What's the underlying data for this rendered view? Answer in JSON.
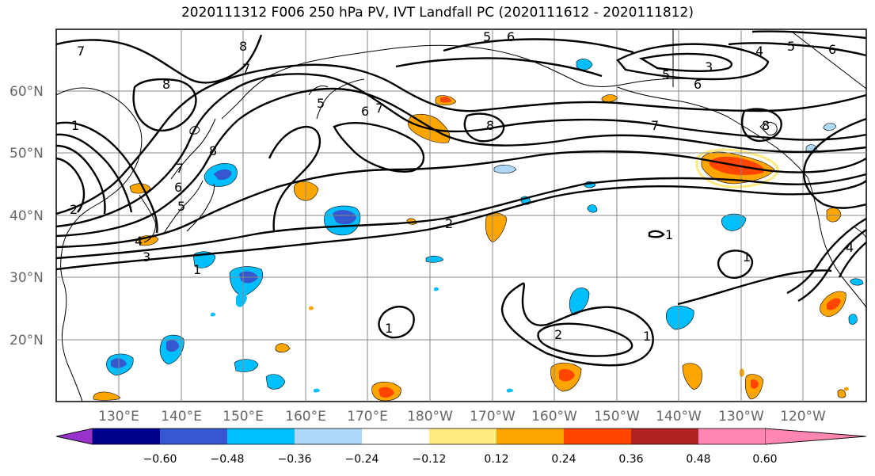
{
  "title": "2020111312 F006 250 hPa PV, IVT Landfall PC (2020111612 - 2020111812)",
  "map": {
    "lat_labels": [
      "60°N",
      "50°N",
      "40°N",
      "30°N",
      "20°N"
    ],
    "lon_labels": [
      "130°E",
      "140°E",
      "150°E",
      "160°E",
      "170°E",
      "180°W",
      "170°W",
      "160°W",
      "150°W",
      "140°W",
      "130°W",
      "120°W"
    ],
    "pv_contour_labels": [
      "7",
      "8",
      "7",
      "8",
      "6",
      "5",
      "5",
      "6",
      "7",
      "1",
      "2",
      "1",
      "8",
      "7",
      "6",
      "5",
      "4",
      "3",
      "8",
      "2",
      "1",
      "7",
      "8",
      "5",
      "6",
      "3",
      "4",
      "5",
      "6",
      "1",
      "2",
      "1",
      "1",
      "4"
    ]
  },
  "colorbar": {
    "tick_labels": [
      "−0.60",
      "−0.48",
      "−0.36",
      "−0.24",
      "−0.12",
      "0.12",
      "0.24",
      "0.36",
      "0.48",
      "0.60"
    ],
    "colors": [
      "#9932cc",
      "#00008b",
      "#3558d0",
      "#00bfff",
      "#add8f8",
      "#ffffff",
      "#ffea80",
      "#ffa500",
      "#ff4500",
      "#b22222",
      "#ff85b3"
    ]
  },
  "colors": {
    "neg_strong": "#3558d0",
    "neg_mid": "#00bfff",
    "neg_weak": "#add8f8",
    "pos_weak": "#ffea80",
    "pos_mid": "#ffa500",
    "pos_strong": "#ff4500"
  }
}
